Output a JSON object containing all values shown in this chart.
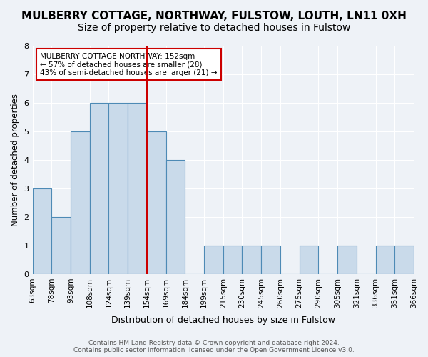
{
  "title": "MULBERRY COTTAGE, NORTHWAY, FULSTOW, LOUTH, LN11 0XH",
  "subtitle": "Size of property relative to detached houses in Fulstow",
  "xlabel": "Distribution of detached houses by size in Fulstow",
  "ylabel": "Number of detached properties",
  "tick_labels": [
    "63sqm",
    "78sqm",
    "93sqm",
    "108sqm",
    "124sqm",
    "139sqm",
    "154sqm",
    "169sqm",
    "184sqm",
    "199sqm",
    "215sqm",
    "230sqm",
    "245sqm",
    "260sqm",
    "275sqm",
    "290sqm",
    "305sqm",
    "321sqm",
    "336sqm",
    "351sqm",
    "366sqm"
  ],
  "counts": [
    3,
    2,
    5,
    6,
    6,
    6,
    5,
    4,
    0,
    1,
    1,
    1,
    1,
    0,
    1,
    0,
    1,
    0,
    1,
    1
  ],
  "bar_color": "#c9daea",
  "bar_edge_color": "#4d8ab5",
  "vline_color": "#cc0000",
  "vline_pos": 5.5,
  "annotation_text": "MULBERRY COTTAGE NORTHWAY: 152sqm\n← 57% of detached houses are smaller (28)\n43% of semi-detached houses are larger (21) →",
  "annotation_box_edgecolor": "#cc0000",
  "footer": "Contains HM Land Registry data © Crown copyright and database right 2024.\nContains public sector information licensed under the Open Government Licence v3.0.",
  "ylim": [
    0,
    8
  ],
  "yticks": [
    0,
    1,
    2,
    3,
    4,
    5,
    6,
    7,
    8
  ],
  "bg_color": "#eef2f7",
  "grid_color": "#ffffff",
  "title_fontsize": 11,
  "subtitle_fontsize": 10
}
